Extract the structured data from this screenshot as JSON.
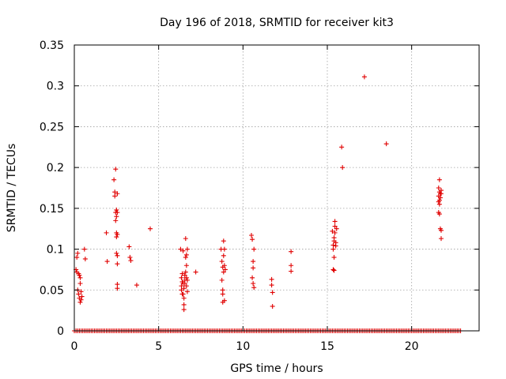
{
  "chart_data": {
    "type": "scatter",
    "title": "Day 196 of 2018, SRMTID for receiver kit3",
    "xlabel": "GPS time / hours",
    "ylabel": "SRMTID / TECUs",
    "xlim": [
      0,
      24
    ],
    "ylim": [
      0,
      0.35
    ],
    "x_ticks": [
      0,
      5,
      10,
      15,
      20
    ],
    "y_ticks": [
      0,
      0.05,
      0.1,
      0.15,
      0.2,
      0.25,
      0.3,
      0.35
    ],
    "x_tick_labels": [
      "0",
      "5",
      "10",
      "15",
      "20"
    ],
    "y_tick_labels": [
      "0",
      "0.05",
      "0.1",
      "0.15",
      "0.2",
      "0.25",
      "0.3",
      "0.35"
    ],
    "grid": true,
    "marker": "+",
    "color": "#e00000",
    "zero_baseline": {
      "x_start": 0.0,
      "x_end": 22.9,
      "step": 0.1,
      "y": 0
    },
    "series": [
      {
        "name": "SRMTID",
        "points": [
          [
            0.1,
            0.075
          ],
          [
            0.15,
            0.09
          ],
          [
            0.15,
            0.072
          ],
          [
            0.2,
            0.095
          ],
          [
            0.2,
            0.05
          ],
          [
            0.25,
            0.07
          ],
          [
            0.25,
            0.045
          ],
          [
            0.3,
            0.068
          ],
          [
            0.3,
            0.04
          ],
          [
            0.35,
            0.065
          ],
          [
            0.35,
            0.035
          ],
          [
            0.35,
            0.058
          ],
          [
            0.4,
            0.048
          ],
          [
            0.4,
            0.038
          ],
          [
            0.45,
            0.042
          ],
          [
            0.6,
            0.1
          ],
          [
            0.65,
            0.088
          ],
          [
            1.9,
            0.12
          ],
          [
            1.95,
            0.085
          ],
          [
            2.35,
            0.185
          ],
          [
            2.4,
            0.165
          ],
          [
            2.4,
            0.17
          ],
          [
            2.45,
            0.198
          ],
          [
            2.45,
            0.145
          ],
          [
            2.45,
            0.135
          ],
          [
            2.5,
            0.148
          ],
          [
            2.5,
            0.14
          ],
          [
            2.5,
            0.12
          ],
          [
            2.5,
            0.115
          ],
          [
            2.5,
            0.095
          ],
          [
            2.55,
            0.168
          ],
          [
            2.55,
            0.145
          ],
          [
            2.55,
            0.118
          ],
          [
            2.55,
            0.092
          ],
          [
            2.55,
            0.082
          ],
          [
            2.55,
            0.057
          ],
          [
            2.55,
            0.052
          ],
          [
            3.25,
            0.103
          ],
          [
            3.3,
            0.09
          ],
          [
            3.35,
            0.086
          ],
          [
            3.7,
            0.056
          ],
          [
            4.5,
            0.125
          ],
          [
            6.3,
            0.1
          ],
          [
            6.35,
            0.065
          ],
          [
            6.35,
            0.055
          ],
          [
            6.35,
            0.05
          ],
          [
            6.4,
            0.07
          ],
          [
            6.4,
            0.06
          ],
          [
            6.4,
            0.045
          ],
          [
            6.45,
            0.098
          ],
          [
            6.45,
            0.058
          ],
          [
            6.45,
            0.045
          ],
          [
            6.5,
            0.052
          ],
          [
            6.5,
            0.04
          ],
          [
            6.5,
            0.032
          ],
          [
            6.5,
            0.026
          ],
          [
            6.55,
            0.068
          ],
          [
            6.55,
            0.062
          ],
          [
            6.55,
            0.058
          ],
          [
            6.6,
            0.113
          ],
          [
            6.6,
            0.09
          ],
          [
            6.6,
            0.072
          ],
          [
            6.65,
            0.093
          ],
          [
            6.65,
            0.08
          ],
          [
            6.65,
            0.065
          ],
          [
            6.65,
            0.055
          ],
          [
            6.7,
            0.1
          ],
          [
            6.7,
            0.062
          ],
          [
            6.7,
            0.048
          ],
          [
            7.2,
            0.072
          ],
          [
            8.7,
            0.1
          ],
          [
            8.75,
            0.085
          ],
          [
            8.75,
            0.062
          ],
          [
            8.8,
            0.078
          ],
          [
            8.8,
            0.05
          ],
          [
            8.8,
            0.045
          ],
          [
            8.8,
            0.035
          ],
          [
            8.85,
            0.11
          ],
          [
            8.85,
            0.092
          ],
          [
            8.85,
            0.072
          ],
          [
            8.9,
            0.1
          ],
          [
            8.9,
            0.08
          ],
          [
            8.9,
            0.037
          ],
          [
            8.95,
            0.075
          ],
          [
            10.5,
            0.117
          ],
          [
            10.55,
            0.112
          ],
          [
            10.55,
            0.065
          ],
          [
            10.6,
            0.085
          ],
          [
            10.6,
            0.077
          ],
          [
            10.6,
            0.058
          ],
          [
            10.65,
            0.1
          ],
          [
            10.65,
            0.053
          ],
          [
            11.7,
            0.063
          ],
          [
            11.7,
            0.056
          ],
          [
            11.75,
            0.047
          ],
          [
            11.75,
            0.03
          ],
          [
            12.85,
            0.097
          ],
          [
            12.85,
            0.08
          ],
          [
            12.85,
            0.073
          ],
          [
            15.3,
            0.122
          ],
          [
            15.35,
            0.105
          ],
          [
            15.35,
            0.1
          ],
          [
            15.35,
            0.075
          ],
          [
            15.4,
            0.114
          ],
          [
            15.4,
            0.11
          ],
          [
            15.4,
            0.09
          ],
          [
            15.4,
            0.074
          ],
          [
            15.45,
            0.134
          ],
          [
            15.45,
            0.128
          ],
          [
            15.45,
            0.12
          ],
          [
            15.5,
            0.108
          ],
          [
            15.5,
            0.104
          ],
          [
            15.55,
            0.125
          ],
          [
            15.85,
            0.225
          ],
          [
            15.9,
            0.2
          ],
          [
            17.2,
            0.311
          ],
          [
            18.5,
            0.229
          ],
          [
            21.6,
            0.175
          ],
          [
            21.6,
            0.165
          ],
          [
            21.6,
            0.158
          ],
          [
            21.6,
            0.145
          ],
          [
            21.65,
            0.185
          ],
          [
            21.65,
            0.17
          ],
          [
            21.65,
            0.16
          ],
          [
            21.65,
            0.155
          ],
          [
            21.65,
            0.143
          ],
          [
            21.7,
            0.168
          ],
          [
            21.7,
            0.163
          ],
          [
            21.7,
            0.125
          ],
          [
            21.75,
            0.172
          ],
          [
            21.75,
            0.168
          ],
          [
            21.75,
            0.123
          ],
          [
            21.75,
            0.113
          ]
        ]
      }
    ]
  }
}
